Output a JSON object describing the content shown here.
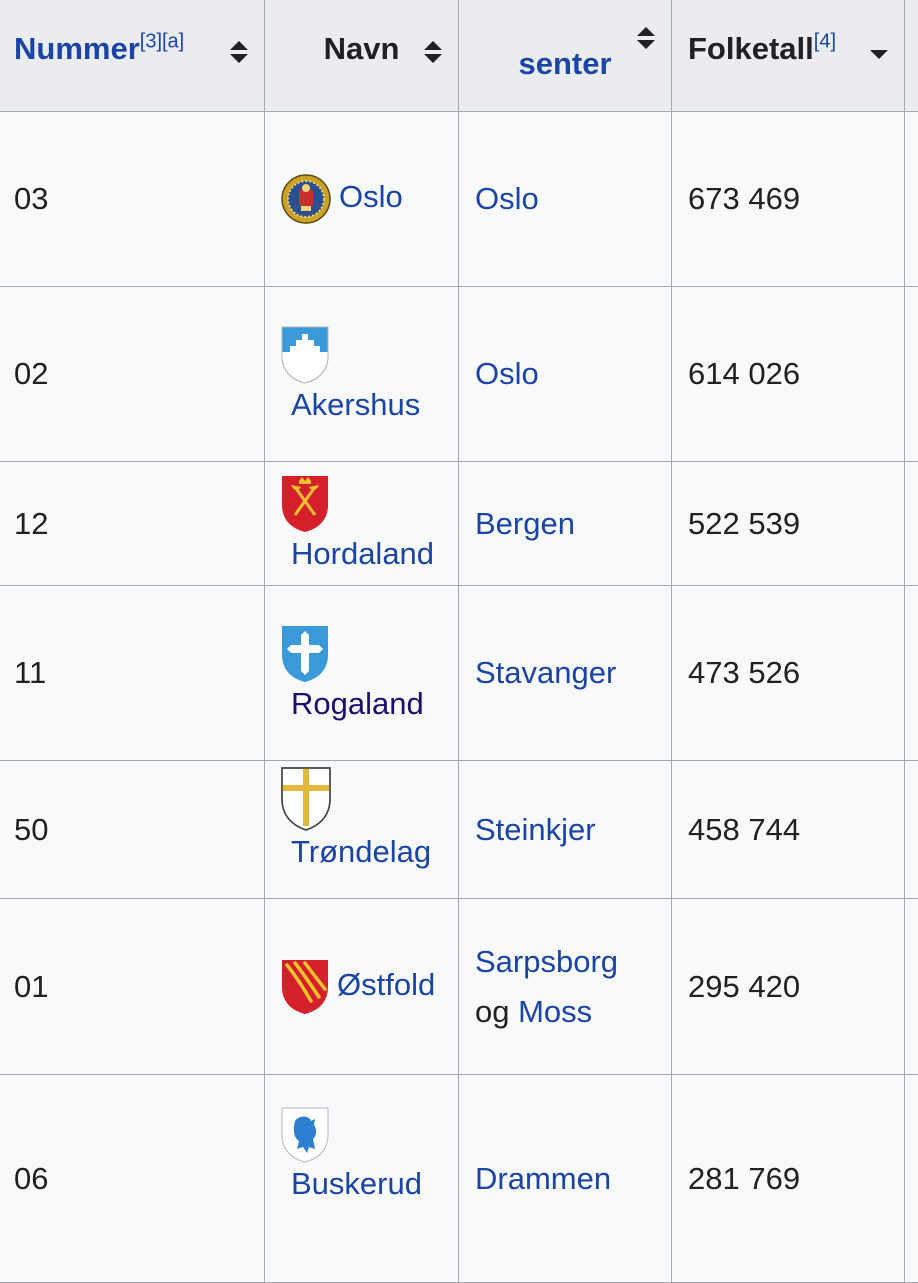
{
  "table": {
    "headers": {
      "number": "Nummer",
      "number_refs": "[3][a]",
      "name": "Navn",
      "center": "senter",
      "population": "Folketall",
      "population_ref": "[4]"
    },
    "rows": [
      {
        "number": "03",
        "name": "Oslo",
        "center_parts": [
          {
            "text": "Oslo",
            "link": true
          }
        ],
        "population": "673 469",
        "emblem": "oslo-seal-icon"
      },
      {
        "number": "02",
        "name": "Akershus",
        "center_parts": [
          {
            "text": "Oslo",
            "link": true
          }
        ],
        "population": "614 026",
        "emblem": "akershus-shield-icon"
      },
      {
        "number": "12",
        "name": "Hordaland",
        "center_parts": [
          {
            "text": "Bergen",
            "link": true
          }
        ],
        "population": "522 539",
        "emblem": "hordaland-shield-icon"
      },
      {
        "number": "11",
        "name": "Rogaland",
        "center_parts": [
          {
            "text": "Stavanger",
            "link": true
          }
        ],
        "population": "473 526",
        "emblem": "rogaland-shield-icon"
      },
      {
        "number": "50",
        "name": "Trøndelag",
        "center_parts": [
          {
            "text": "Steinkjer",
            "link": true
          }
        ],
        "population": "458 744",
        "emblem": "trondelag-shield-icon"
      },
      {
        "number": "01",
        "name": "Østfold",
        "center_parts": [
          {
            "text": "Sarpsborg",
            "link": true
          },
          {
            "text": "og",
            "link": false
          },
          {
            "text": "Moss",
            "link": true
          }
        ],
        "population": "295 420",
        "emblem": "ostfold-shield-icon"
      },
      {
        "number": "06",
        "name": "Buskerud",
        "center_parts": [
          {
            "text": "Drammen",
            "link": true
          }
        ],
        "population": "281 769",
        "emblem": "buskerud-shield-icon"
      }
    ]
  },
  "colors": {
    "link": "#1a44a6",
    "visited_link": "#1a0f6f",
    "header_bg": "#eaecf0",
    "cell_bg": "#f8f9fa",
    "border": "#a2a9b1"
  }
}
